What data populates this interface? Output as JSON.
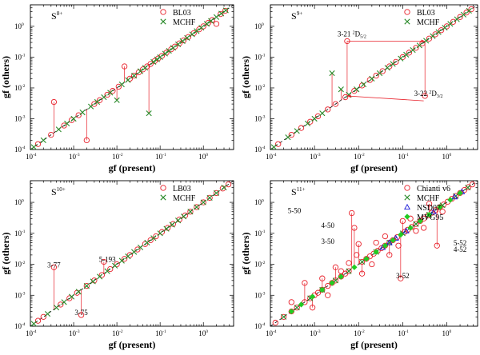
{
  "chart_data": [
    {
      "type": "scatter",
      "panel_label": {
        "base": "S",
        "sup": "8+"
      },
      "xlabel": "gf (present)",
      "ylabel": "gf (others)",
      "xlim": [
        0.0001,
        5
      ],
      "ylim": [
        0.0001,
        5
      ],
      "x_log": true,
      "y_log": true,
      "diagonal_reference": true,
      "legend_position": "top-right",
      "series": [
        {
          "name": "BL03",
          "marker": "circle",
          "color": "#e8202a",
          "x": [
            0.00015,
            0.0003,
            0.00035,
            0.0006,
            0.0009,
            0.0013,
            0.002,
            0.003,
            0.004,
            0.006,
            0.008,
            0.011,
            0.015,
            0.02,
            0.025,
            0.032,
            0.04,
            0.05,
            0.06,
            0.075,
            0.09,
            0.11,
            0.14,
            0.18,
            0.22,
            0.28,
            0.35,
            0.45,
            0.6,
            0.8,
            1.0,
            1.3,
            1.6,
            2.0,
            2.5,
            3.2
          ],
          "y": [
            0.00015,
            0.0003,
            0.0035,
            0.0006,
            0.0009,
            0.0013,
            0.0002,
            0.003,
            0.004,
            0.006,
            0.008,
            0.011,
            0.05,
            0.02,
            0.025,
            0.032,
            0.04,
            0.05,
            0.06,
            0.075,
            0.09,
            0.11,
            0.14,
            0.18,
            0.22,
            0.28,
            0.35,
            0.45,
            0.6,
            0.8,
            1.0,
            1.3,
            1.6,
            1.2,
            2.5,
            3.2
          ]
        },
        {
          "name": "MCHF",
          "marker": "x",
          "color": "#2a8a2a",
          "x": [
            0.00012,
            0.0002,
            0.00045,
            0.0007,
            0.001,
            0.0016,
            0.0025,
            0.0035,
            0.005,
            0.007,
            0.01,
            0.013,
            0.018,
            0.025,
            0.035,
            0.045,
            0.055,
            0.07,
            0.085,
            0.1,
            0.13,
            0.16,
            0.2,
            0.26,
            0.33,
            0.42,
            0.55,
            0.7,
            0.9,
            1.2,
            1.5,
            2.0,
            2.6,
            3.3
          ],
          "y": [
            0.00012,
            0.0002,
            0.00045,
            0.0007,
            0.001,
            0.0016,
            0.0025,
            0.0035,
            0.005,
            0.007,
            0.004,
            0.013,
            0.018,
            0.025,
            0.035,
            0.045,
            0.0015,
            0.07,
            0.085,
            0.1,
            0.13,
            0.16,
            0.2,
            0.26,
            0.33,
            0.42,
            0.55,
            0.7,
            0.9,
            1.2,
            1.5,
            2.0,
            2.6,
            3.3
          ]
        }
      ]
    },
    {
      "type": "scatter",
      "panel_label": {
        "base": "S",
        "sup": "9+"
      },
      "xlabel": "gf (present)",
      "ylabel": "gf (others)",
      "xlim": [
        0.0001,
        5
      ],
      "ylim": [
        0.0001,
        5
      ],
      "x_log": true,
      "y_log": true,
      "diagonal_reference": true,
      "legend_position": "top-right",
      "annotations": [
        {
          "text": "3-21 ²D₅/₂",
          "label": "3-21",
          "sup": "2",
          "letter": "D",
          "sub": "5/2",
          "x": 0.0055,
          "y": 0.33,
          "arrow_to": [
            0.32,
            0.33
          ]
        },
        {
          "text": "3-22 ²D₃/₂",
          "label": "3-22",
          "sup": "2",
          "letter": "D",
          "sub": "3/2",
          "x": 0.3,
          "y": 0.0038,
          "arrow_to": [
            0.0055,
            0.0055
          ]
        }
      ],
      "series": [
        {
          "name": "BL03",
          "marker": "circle",
          "color": "#e8202a",
          "x": [
            0.00015,
            0.0003,
            0.0005,
            0.0008,
            0.0012,
            0.002,
            0.003,
            0.005,
            0.0055,
            0.008,
            0.012,
            0.018,
            0.025,
            0.035,
            0.05,
            0.07,
            0.1,
            0.14,
            0.2,
            0.28,
            0.32,
            0.4,
            0.55,
            0.75,
            1.0,
            1.4,
            2.0,
            2.8,
            3.6
          ],
          "y": [
            0.00015,
            0.0003,
            0.0005,
            0.0008,
            0.0012,
            0.002,
            0.003,
            0.005,
            0.33,
            0.008,
            0.012,
            0.018,
            0.025,
            0.035,
            0.05,
            0.07,
            0.1,
            0.14,
            0.2,
            0.28,
            0.0055,
            0.4,
            0.55,
            0.75,
            1.0,
            1.4,
            2.0,
            2.8,
            3.6
          ]
        },
        {
          "name": "MCHF",
          "marker": "x",
          "color": "#2a8a2a",
          "x": [
            0.00012,
            0.00025,
            0.0004,
            0.0007,
            0.001,
            0.0015,
            0.0025,
            0.004,
            0.006,
            0.009,
            0.013,
            0.02,
            0.03,
            0.045,
            0.06,
            0.09,
            0.12,
            0.17,
            0.24,
            0.34,
            0.48,
            0.65,
            0.9,
            1.2,
            1.7,
            2.4,
            3.2
          ],
          "y": [
            0.00012,
            0.00025,
            0.0004,
            0.0007,
            0.001,
            0.0015,
            0.03,
            0.009,
            0.006,
            0.009,
            0.013,
            0.02,
            0.03,
            0.045,
            0.06,
            0.09,
            0.12,
            0.17,
            0.24,
            0.34,
            0.48,
            0.65,
            0.9,
            1.2,
            1.7,
            2.4,
            3.2
          ]
        }
      ]
    },
    {
      "type": "scatter",
      "panel_label": {
        "base": "S",
        "sup": "10+"
      },
      "xlabel": "gf (present)",
      "ylabel": "gf (others)",
      "xlim": [
        0.0001,
        5
      ],
      "ylim": [
        0.0001,
        5
      ],
      "x_log": true,
      "y_log": true,
      "diagonal_reference": true,
      "legend_position": "top-right",
      "annotations": [
        {
          "text": "3-77",
          "x": 0.00035,
          "y": 0.008
        },
        {
          "text": "5-193",
          "x": 0.006,
          "y": 0.012
        },
        {
          "text": "3-75",
          "x": 0.0015,
          "y": 0.00023
        }
      ],
      "series": [
        {
          "name": "LB03",
          "marker": "circle",
          "color": "#e8202a",
          "x": [
            0.00015,
            0.0002,
            0.00035,
            0.0005,
            0.0008,
            0.0012,
            0.0015,
            0.002,
            0.003,
            0.0045,
            0.005,
            0.007,
            0.01,
            0.015,
            0.02,
            0.03,
            0.045,
            0.06,
            0.08,
            0.11,
            0.15,
            0.2,
            0.28,
            0.38,
            0.5,
            0.7,
            1.0,
            1.4,
            2.0,
            2.8,
            3.8
          ],
          "y": [
            0.00015,
            0.0002,
            0.008,
            0.0005,
            0.0008,
            0.0012,
            0.00023,
            0.002,
            0.003,
            0.0045,
            0.012,
            0.007,
            0.01,
            0.015,
            0.02,
            0.03,
            0.045,
            0.06,
            0.08,
            0.11,
            0.15,
            0.2,
            0.28,
            0.38,
            0.5,
            0.7,
            1.0,
            1.4,
            2.0,
            2.8,
            3.8
          ]
        },
        {
          "name": "MCHF",
          "marker": "x",
          "color": "#2a8a2a",
          "x": [
            0.00012,
            0.00025,
            0.0004,
            0.0006,
            0.0009,
            0.0013,
            0.002,
            0.0028,
            0.004,
            0.006,
            0.009,
            0.013,
            0.018,
            0.025,
            0.035,
            0.05,
            0.07,
            0.1,
            0.14,
            0.19,
            0.26,
            0.35,
            0.5,
            0.7,
            1.0,
            1.4,
            2.0,
            3.0
          ],
          "y": [
            0.00012,
            0.00025,
            0.0004,
            0.0006,
            0.0009,
            0.0013,
            0.002,
            0.0028,
            0.004,
            0.006,
            0.009,
            0.013,
            0.018,
            0.025,
            0.035,
            0.05,
            0.07,
            0.1,
            0.14,
            0.19,
            0.26,
            0.35,
            0.5,
            0.7,
            1.0,
            1.4,
            2.0,
            3.0
          ]
        }
      ]
    },
    {
      "type": "scatter",
      "panel_label": {
        "base": "S",
        "sup": "11+"
      },
      "xlabel": "gf (present)",
      "ylabel": "gf (others)",
      "xlim": [
        0.0001,
        5
      ],
      "ylim": [
        0.0001,
        5
      ],
      "x_log": true,
      "y_log": true,
      "diagonal_reference": true,
      "legend_position": "top-right",
      "annotations": [
        {
          "text": "5-50",
          "x": 0.00035,
          "y": 0.45
        },
        {
          "text": "4-50",
          "x": 0.002,
          "y": 0.15
        },
        {
          "text": "3-50",
          "x": 0.002,
          "y": 0.045
        },
        {
          "text": "3-52",
          "x": 0.1,
          "y": 0.0035
        },
        {
          "text": "5-52",
          "x": 2.0,
          "y": 0.04
        },
        {
          "text": "4-52",
          "x": 2.0,
          "y": 0.025
        }
      ],
      "series": [
        {
          "name": "Chianti v6",
          "marker": "circle",
          "color": "#e8202a",
          "x": [
            0.00013,
            0.0002,
            0.0003,
            0.0004,
            0.0006,
            0.0008,
            0.001,
            0.0012,
            0.0015,
            0.002,
            0.0025,
            0.003,
            0.004,
            0.005,
            0.006,
            0.007,
            0.008,
            0.01,
            0.012,
            0.015,
            0.018,
            0.022,
            0.027,
            0.033,
            0.04,
            0.05,
            0.06,
            0.075,
            0.09,
            0.11,
            0.13,
            0.16,
            0.2,
            0.25,
            0.3,
            0.38,
            0.46,
            0.56,
            0.7,
            0.85,
            1.05,
            1.3,
            1.6,
            2.0,
            2.5,
            3.1,
            3.8,
            0.0006,
            0.0015,
            0.003,
            0.006,
            0.012,
            0.025,
            0.05,
            0.1,
            0.2,
            0.4,
            0.8,
            0.0003,
            0.0009,
            0.002,
            0.004,
            0.009,
            0.02,
            0.04,
            0.08,
            0.15,
            0.3,
            0.6
          ],
          "y": [
            0.00013,
            0.0002,
            0.0003,
            0.0004,
            0.0006,
            0.0008,
            0.001,
            0.0012,
            0.0015,
            0.002,
            0.0025,
            0.003,
            0.004,
            0.005,
            0.006,
            0.45,
            0.15,
            0.045,
            0.012,
            0.015,
            0.018,
            0.022,
            0.027,
            0.033,
            0.04,
            0.05,
            0.06,
            0.075,
            0.0035,
            0.11,
            0.13,
            0.16,
            0.2,
            0.25,
            0.3,
            0.38,
            0.46,
            0.56,
            0.7,
            0.85,
            1.05,
            1.3,
            1.6,
            2.0,
            2.5,
            3.1,
            3.8,
            0.0025,
            0.0035,
            0.008,
            0.011,
            0.005,
            0.05,
            0.02,
            0.25,
            0.12,
            0.9,
            0.5,
            0.0006,
            0.0004,
            0.001,
            0.006,
            0.02,
            0.01,
            0.08,
            0.04,
            0.3,
            0.15,
            0.04
          ]
        },
        {
          "name": "MCHF",
          "marker": "x",
          "color": "#2a8a2a",
          "x": [
            0.0002,
            0.0004,
            0.0008,
            0.0015,
            0.003,
            0.006,
            0.012,
            0.025,
            0.05,
            0.1,
            0.2,
            0.4,
            0.8,
            1.6,
            3.0
          ],
          "y": [
            0.0002,
            0.0004,
            0.0008,
            0.0015,
            0.003,
            0.006,
            0.012,
            0.025,
            0.05,
            0.1,
            0.2,
            0.4,
            0.8,
            1.6,
            3.0
          ]
        },
        {
          "name": "NSD07",
          "marker": "triangle",
          "color": "#1a1ad8",
          "x": [
            0.035,
            0.05,
            0.07,
            0.12,
            0.5,
            1.5,
            2.2
          ],
          "y": [
            0.035,
            0.05,
            0.07,
            0.12,
            0.5,
            1.5,
            2.2
          ]
        },
        {
          "name": "MVG95",
          "marker": "diamond",
          "color": "#22cc22",
          "x": [
            0.0003,
            0.0005,
            0.0009,
            0.0015,
            0.0025,
            0.004,
            0.008,
            0.015,
            0.025,
            0.04,
            0.06,
            0.09,
            0.15,
            0.25,
            0.4,
            0.7,
            1.2,
            2.0
          ],
          "y": [
            0.0003,
            0.0005,
            0.0009,
            0.0015,
            0.0025,
            0.004,
            0.008,
            0.015,
            0.025,
            0.04,
            0.06,
            0.09,
            0.15,
            0.25,
            0.4,
            0.7,
            1.2,
            2.0
          ]
        }
      ]
    }
  ]
}
